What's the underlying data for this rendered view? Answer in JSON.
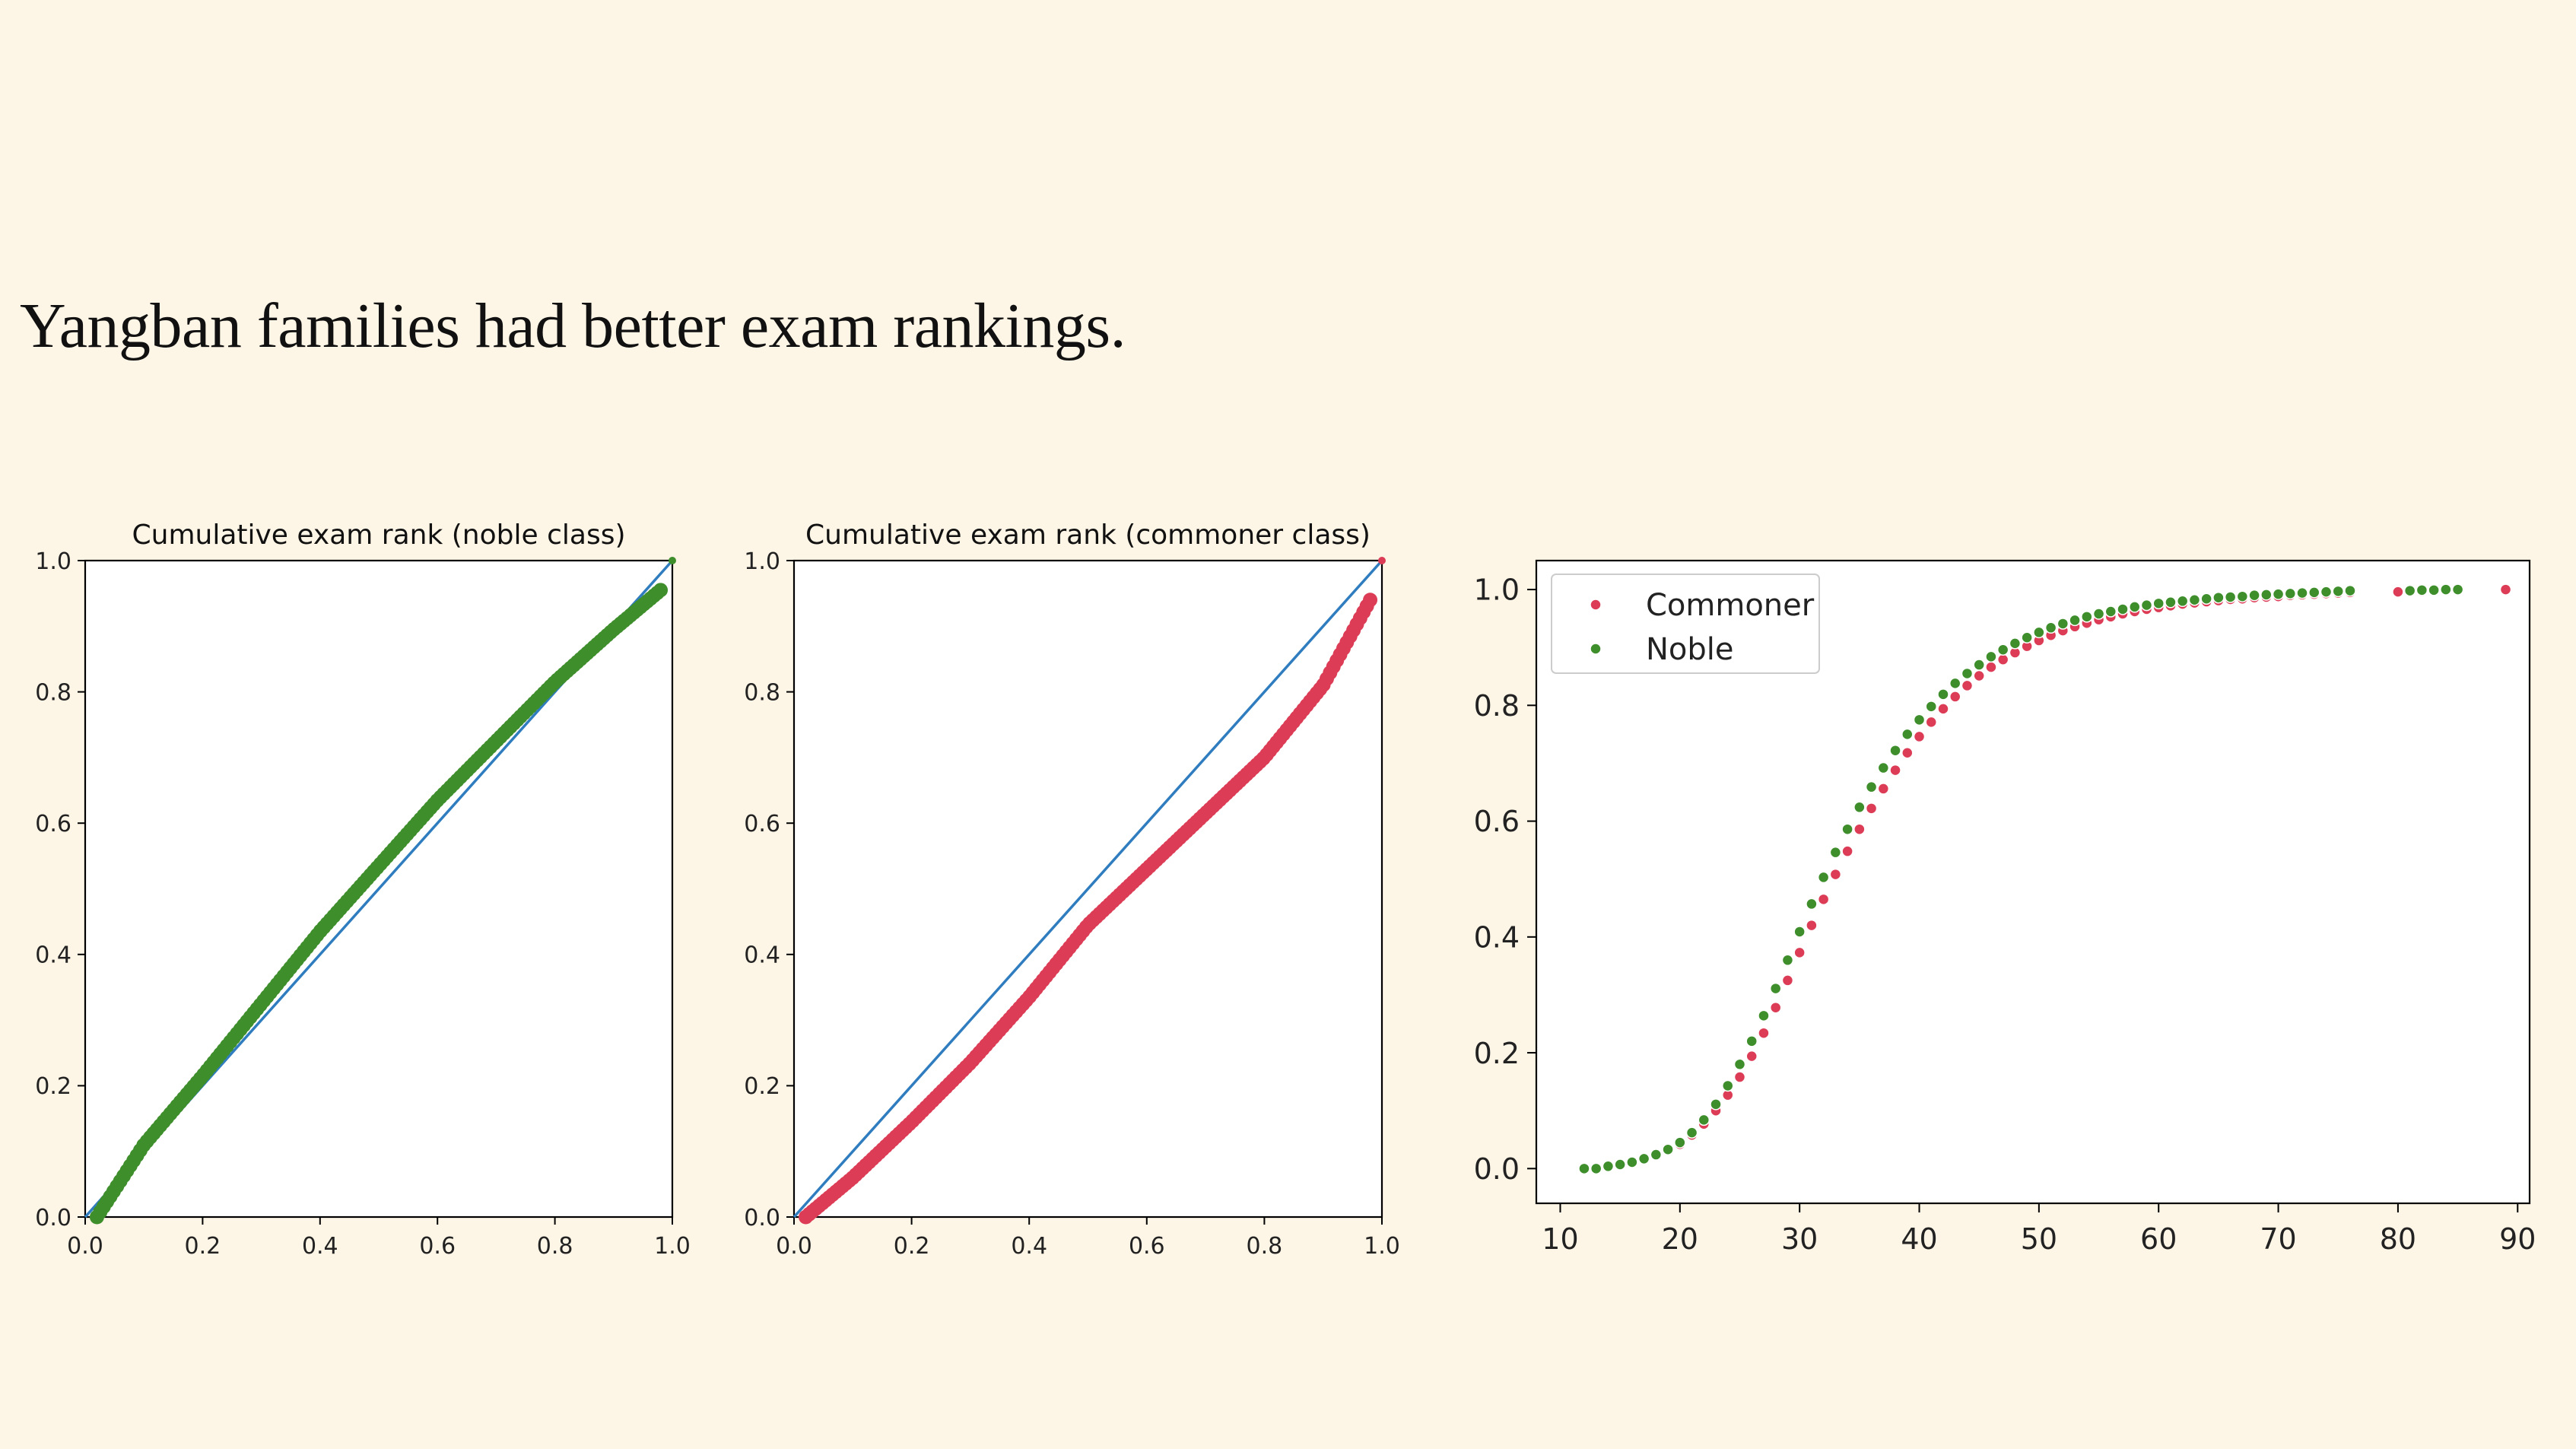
{
  "slide": {
    "title": "Yangban families had better exam rankings."
  },
  "colors": {
    "background": "#fdf5e6",
    "noble": "#3e8e2c",
    "commoner": "#dc3c55",
    "diagonal": "#2f7dbf"
  },
  "chart_data": [
    {
      "id": "noble",
      "type": "scatter",
      "title": "Cumulative exam rank (noble class)",
      "xlim": [
        0.0,
        1.0
      ],
      "ylim": [
        0.0,
        1.0
      ],
      "xticks": [
        "0.0",
        "0.2",
        "0.4",
        "0.6",
        "0.8",
        "1.0"
      ],
      "yticks": [
        "0.0",
        "0.2",
        "0.4",
        "0.6",
        "0.8",
        "1.0"
      ],
      "grid": false,
      "reference_line": {
        "from": [
          0,
          0
        ],
        "to": [
          1,
          1
        ],
        "color": "#2f7dbf"
      },
      "series": [
        {
          "color": "#3e8e2c",
          "x": [
            0.02,
            0.1,
            0.2,
            0.3,
            0.4,
            0.5,
            0.6,
            0.7,
            0.8,
            0.9,
            0.98,
            1.0
          ],
          "y": [
            0.0,
            0.11,
            0.215,
            0.325,
            0.435,
            0.535,
            0.635,
            0.725,
            0.815,
            0.895,
            0.955,
            1.0
          ]
        }
      ]
    },
    {
      "id": "commoner",
      "type": "scatter",
      "title": "Cumulative exam rank (commoner class)",
      "xlim": [
        0.0,
        1.0
      ],
      "ylim": [
        0.0,
        1.0
      ],
      "xticks": [
        "0.0",
        "0.2",
        "0.4",
        "0.6",
        "0.8",
        "1.0"
      ],
      "yticks": [
        "0.0",
        "0.2",
        "0.4",
        "0.6",
        "0.8",
        "1.0"
      ],
      "grid": false,
      "reference_line": {
        "from": [
          0,
          0
        ],
        "to": [
          1,
          1
        ],
        "color": "#2f7dbf"
      },
      "series": [
        {
          "color": "#dc3c55",
          "x": [
            0.02,
            0.1,
            0.2,
            0.3,
            0.4,
            0.5,
            0.6,
            0.7,
            0.8,
            0.9,
            0.98,
            1.0
          ],
          "y": [
            0.0,
            0.06,
            0.145,
            0.235,
            0.335,
            0.445,
            0.53,
            0.615,
            0.7,
            0.81,
            0.94,
            1.0
          ]
        }
      ]
    },
    {
      "id": "cdf",
      "type": "scatter",
      "title": "",
      "xlim": [
        8,
        91
      ],
      "ylim": [
        -0.06,
        1.05
      ],
      "xticks": [
        10,
        20,
        30,
        40,
        50,
        60,
        70,
        80,
        90
      ],
      "yticks": [
        "0.0",
        "0.2",
        "0.4",
        "0.6",
        "0.8",
        "1.0"
      ],
      "grid": false,
      "legend": {
        "position": "upper-left"
      },
      "series": [
        {
          "name": "Commoner",
          "color": "#dc3c55",
          "x": [
            12,
            13,
            14,
            15,
            16,
            17,
            18,
            19,
            20,
            21,
            22,
            23,
            24,
            25,
            26,
            27,
            28,
            29,
            30,
            31,
            32,
            33,
            34,
            35,
            36,
            37,
            38,
            39,
            40,
            41,
            42,
            43,
            44,
            45,
            46,
            47,
            48,
            49,
            50,
            51,
            52,
            53,
            54,
            55,
            56,
            57,
            58,
            59,
            60,
            61,
            62,
            63,
            64,
            65,
            66,
            67,
            68,
            69,
            70,
            71,
            72,
            73,
            74,
            75,
            76,
            80,
            82,
            83,
            84,
            89
          ],
          "y": [
            0.0,
            0.0,
            0.005,
            0.008,
            0.012,
            0.018,
            0.024,
            0.032,
            0.042,
            0.058,
            0.077,
            0.1,
            0.127,
            0.158,
            0.194,
            0.234,
            0.278,
            0.325,
            0.373,
            0.42,
            0.465,
            0.508,
            0.548,
            0.586,
            0.622,
            0.656,
            0.688,
            0.718,
            0.746,
            0.771,
            0.794,
            0.815,
            0.834,
            0.851,
            0.866,
            0.879,
            0.891,
            0.902,
            0.912,
            0.921,
            0.929,
            0.936,
            0.942,
            0.948,
            0.953,
            0.958,
            0.962,
            0.966,
            0.969,
            0.972,
            0.975,
            0.977,
            0.979,
            0.981,
            0.983,
            0.984,
            0.986,
            0.987,
            0.988,
            0.99,
            0.991,
            0.992,
            0.993,
            0.994,
            0.995,
            0.996,
            0.997,
            0.998,
            0.999,
            1.0
          ]
        },
        {
          "name": "Noble",
          "color": "#3e8e2c",
          "x": [
            12,
            13,
            14,
            15,
            16,
            17,
            18,
            19,
            20,
            21,
            22,
            23,
            24,
            25,
            26,
            27,
            28,
            29,
            30,
            31,
            32,
            33,
            34,
            35,
            36,
            37,
            38,
            39,
            40,
            41,
            42,
            43,
            44,
            45,
            46,
            47,
            48,
            49,
            50,
            51,
            52,
            53,
            54,
            55,
            56,
            57,
            58,
            59,
            60,
            61,
            62,
            63,
            64,
            65,
            66,
            67,
            68,
            69,
            70,
            71,
            72,
            73,
            74,
            75,
            76,
            81,
            82,
            83,
            84,
            85
          ],
          "y": [
            0.0,
            0.0,
            0.004,
            0.007,
            0.011,
            0.017,
            0.024,
            0.033,
            0.045,
            0.062,
            0.084,
            0.111,
            0.143,
            0.18,
            0.22,
            0.264,
            0.311,
            0.36,
            0.409,
            0.457,
            0.503,
            0.546,
            0.586,
            0.624,
            0.659,
            0.692,
            0.722,
            0.75,
            0.775,
            0.798,
            0.819,
            0.838,
            0.855,
            0.87,
            0.884,
            0.896,
            0.907,
            0.917,
            0.926,
            0.934,
            0.941,
            0.947,
            0.953,
            0.958,
            0.962,
            0.966,
            0.97,
            0.973,
            0.976,
            0.978,
            0.98,
            0.982,
            0.984,
            0.986,
            0.987,
            0.988,
            0.99,
            0.991,
            0.992,
            0.993,
            0.994,
            0.995,
            0.996,
            0.997,
            0.998,
            0.998,
            0.999,
            0.999,
            1.0,
            1.0
          ]
        }
      ]
    }
  ]
}
